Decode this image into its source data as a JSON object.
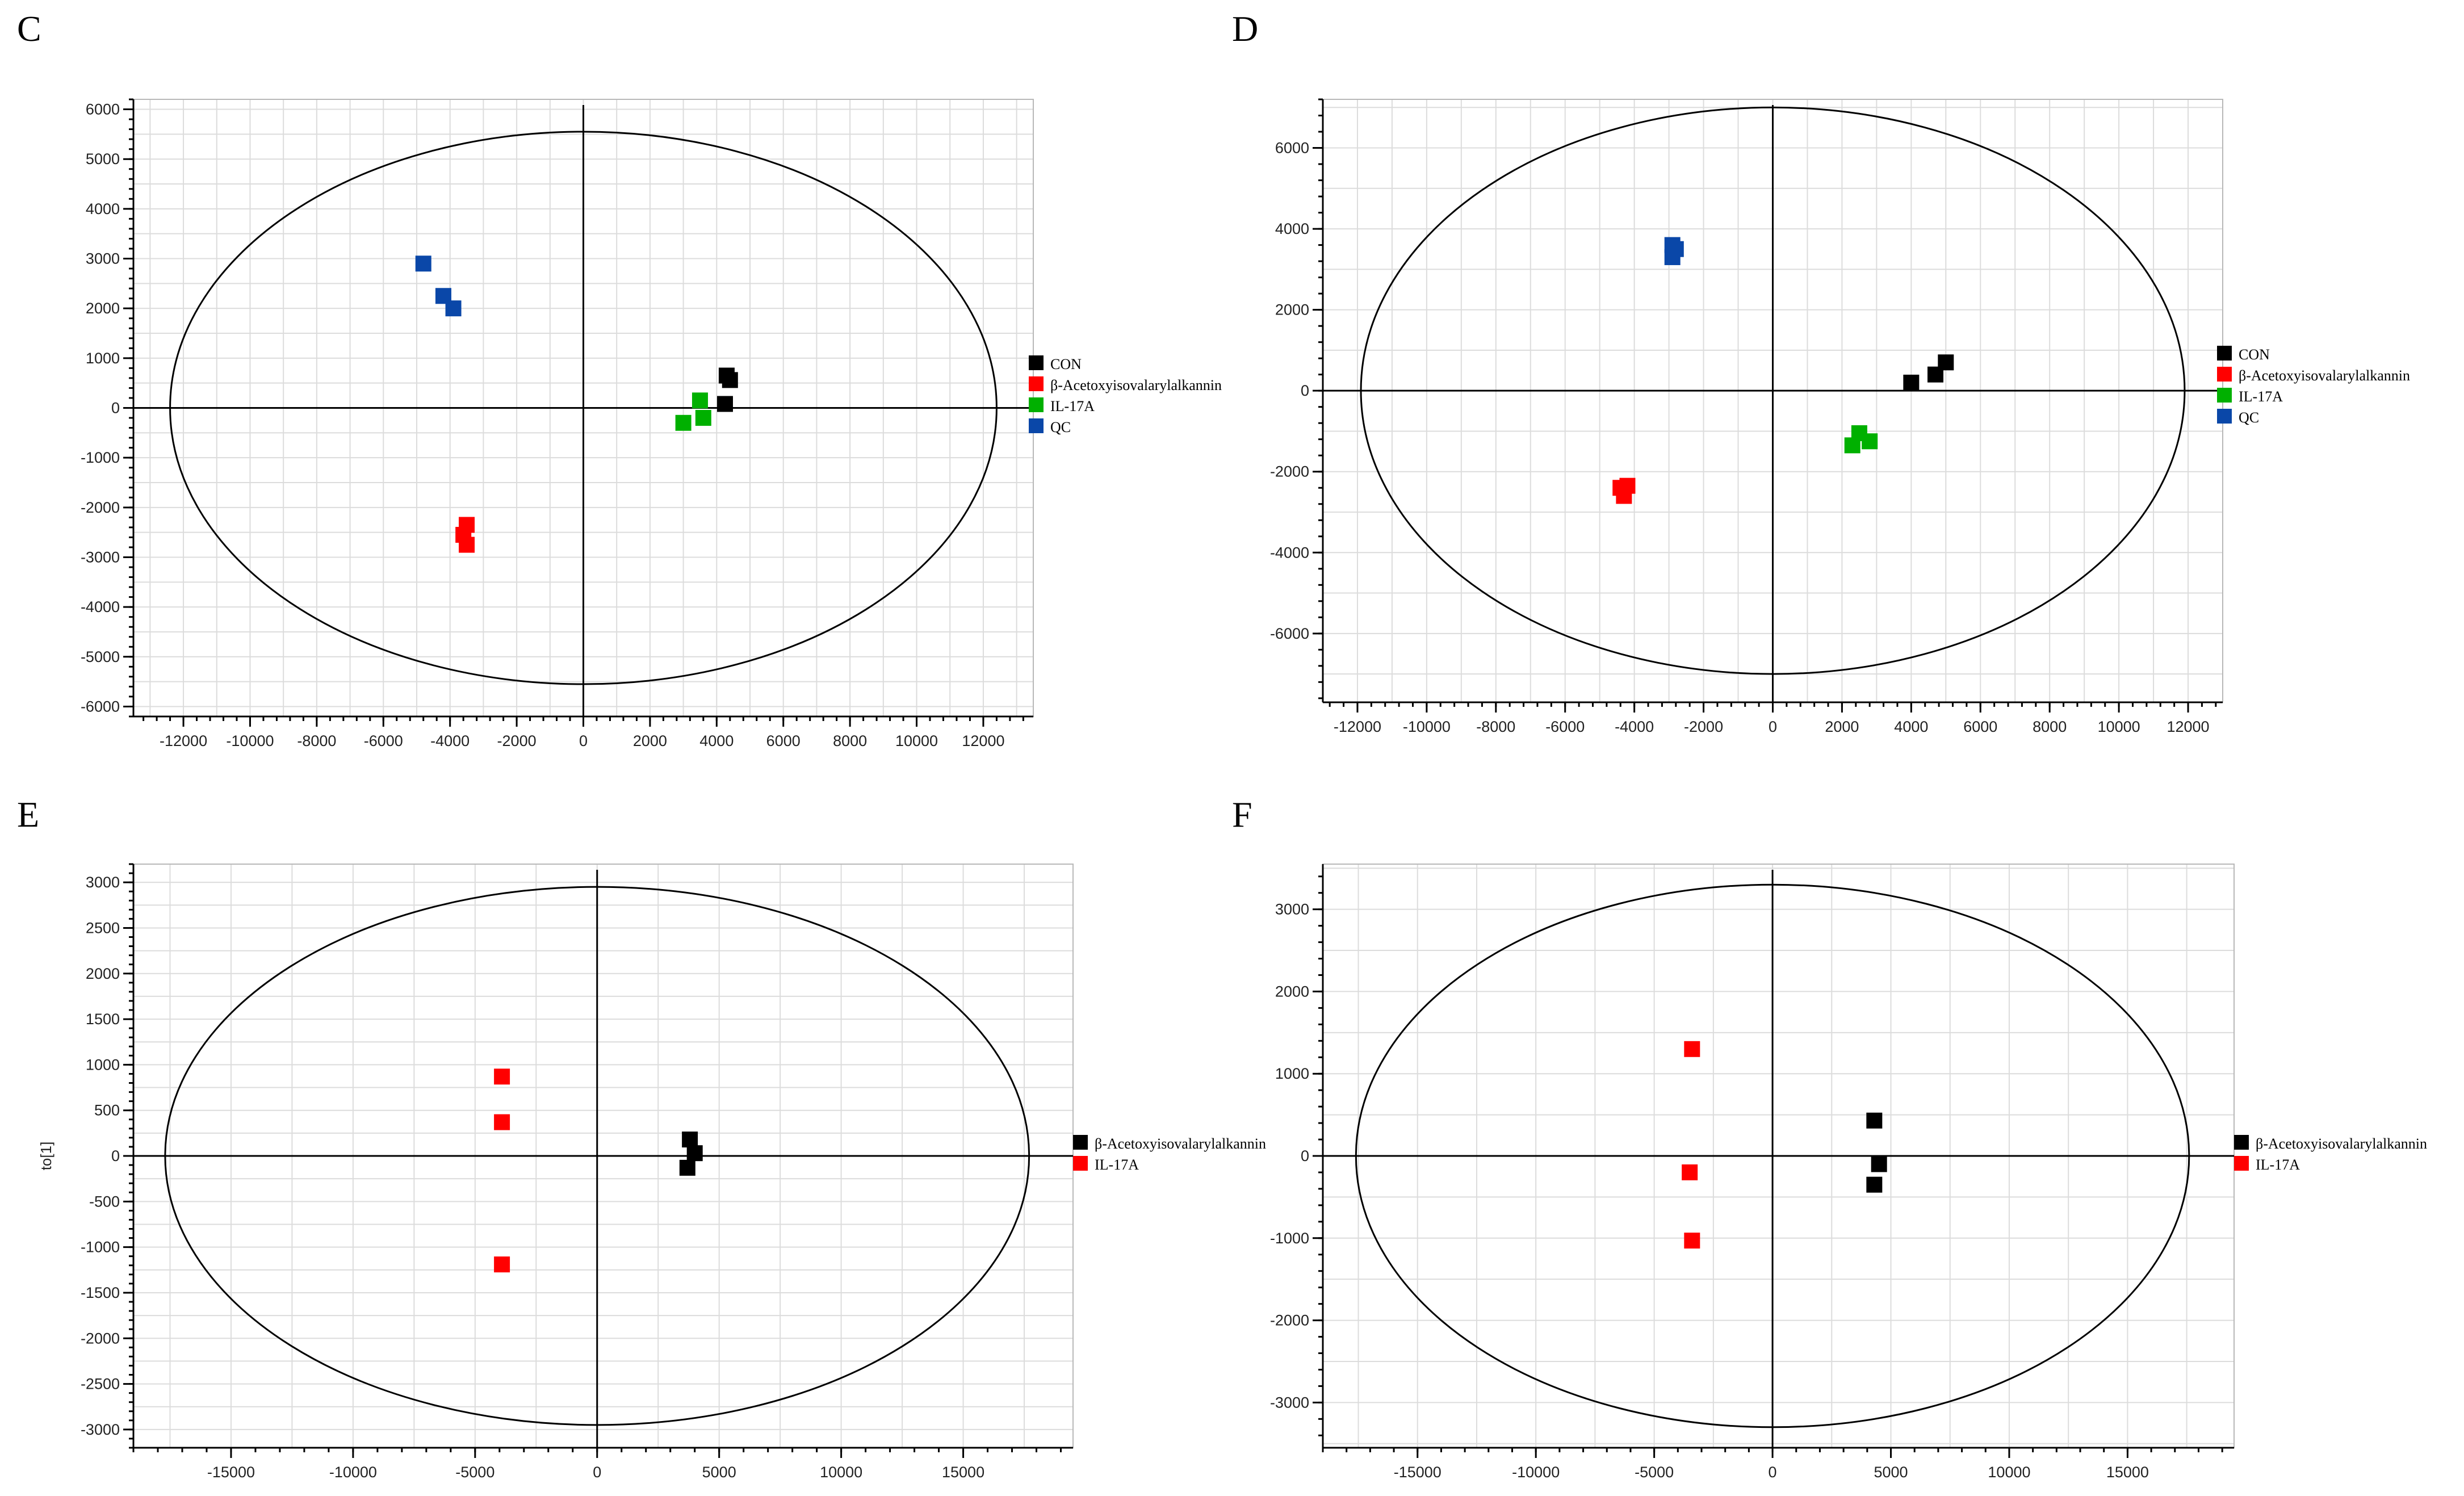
{
  "colors": {
    "CON": "#000000",
    "beta": "#ff0000",
    "IL17A": "#00b000",
    "QC": "#0a47a8"
  },
  "chart_data": [
    {
      "id": "C",
      "type": "scatter",
      "panel_label": "C",
      "xlim": [
        -13500,
        13500
      ],
      "ylim": [
        -6200,
        6200
      ],
      "xticks": [
        -12000,
        -10000,
        -8000,
        -6000,
        -4000,
        -2000,
        0,
        2000,
        4000,
        6000,
        8000,
        10000,
        12000
      ],
      "yticks": [
        -6000,
        -5000,
        -4000,
        -3000,
        -2000,
        -1000,
        0,
        1000,
        2000,
        3000,
        4000,
        5000,
        6000
      ],
      "ellipse": {
        "rx": 12400,
        "ry": 5550
      },
      "ylabel": "",
      "series": [
        {
          "name": "CON",
          "color": "#000000",
          "points": [
            [
              4300,
              650
            ],
            [
              4400,
              560
            ],
            [
              4250,
              80
            ]
          ]
        },
        {
          "name": "β-Acetoxyisovalarylalkannin",
          "color": "#ff0000",
          "points": [
            [
              -3500,
              -2350
            ],
            [
              -3600,
              -2550
            ],
            [
              -3500,
              -2750
            ]
          ]
        },
        {
          "name": "IL-17A",
          "color": "#00b000",
          "points": [
            [
              3500,
              150
            ],
            [
              3600,
              -200
            ],
            [
              3000,
              -300
            ]
          ]
        },
        {
          "name": "QC",
          "color": "#0a47a8",
          "points": [
            [
              -4800,
              2900
            ],
            [
              -4200,
              2250
            ],
            [
              -3900,
              2000
            ]
          ]
        }
      ]
    },
    {
      "id": "D",
      "type": "scatter",
      "panel_label": "D",
      "xlim": [
        -13000,
        13000
      ],
      "ylim": [
        -7700,
        7200
      ],
      "xticks": [
        -12000,
        -10000,
        -8000,
        -6000,
        -4000,
        -2000,
        0,
        2000,
        4000,
        6000,
        8000,
        10000,
        12000
      ],
      "yticks": [
        -6000,
        -4000,
        -2000,
        0,
        2000,
        4000,
        6000
      ],
      "ellipse": {
        "rx": 11900,
        "ry": 7000
      },
      "ylabel": "",
      "series": [
        {
          "name": "CON",
          "color": "#000000",
          "points": [
            [
              4000,
              200
            ],
            [
              4700,
              400
            ],
            [
              5000,
              700
            ]
          ]
        },
        {
          "name": "β-Acetoxyisovalarylalkannin",
          "color": "#ff0000",
          "points": [
            [
              -4400,
              -2400
            ],
            [
              -4200,
              -2350
            ],
            [
              -4300,
              -2600
            ]
          ]
        },
        {
          "name": "IL-17A",
          "color": "#00b000",
          "points": [
            [
              2500,
              -1050
            ],
            [
              2800,
              -1250
            ],
            [
              2300,
              -1350
            ]
          ]
        },
        {
          "name": "QC",
          "color": "#0a47a8",
          "points": [
            [
              -2900,
              3600
            ],
            [
              -2800,
              3500
            ],
            [
              -2900,
              3300
            ]
          ]
        }
      ]
    },
    {
      "id": "E",
      "type": "scatter",
      "panel_label": "E",
      "xlim": [
        -19000,
        19500
      ],
      "ylim": [
        -3200,
        3200
      ],
      "xticks": [
        -15000,
        -10000,
        -5000,
        0,
        5000,
        10000,
        15000
      ],
      "yticks": [
        -3000,
        -2500,
        -2000,
        -1500,
        -1000,
        -500,
        0,
        500,
        1000,
        1500,
        2000,
        2500,
        3000
      ],
      "ellipse": {
        "rx": 17700,
        "ry": 2950
      },
      "ylabel": "to[1]",
      "series": [
        {
          "name": "β-Acetoxyisovalarylalkannin",
          "color": "#000000",
          "points": [
            [
              3800,
              180
            ],
            [
              4000,
              30
            ],
            [
              3700,
              -130
            ]
          ]
        },
        {
          "name": "IL-17A",
          "color": "#ff0000",
          "points": [
            [
              -3900,
              870
            ],
            [
              -3900,
              370
            ],
            [
              -3900,
              -1190
            ]
          ]
        }
      ]
    },
    {
      "id": "F",
      "type": "scatter",
      "panel_label": "F",
      "xlim": [
        -19000,
        19500
      ],
      "ylim": [
        -3550,
        3550
      ],
      "xticks": [
        -15000,
        -10000,
        -5000,
        0,
        5000,
        10000,
        15000
      ],
      "yticks": [
        -3000,
        -2000,
        -1000,
        0,
        1000,
        2000,
        3000
      ],
      "ellipse": {
        "rx": 17600,
        "ry": 3300
      },
      "ylabel": "",
      "series": [
        {
          "name": "β-Acetoxyisovalarylalkannin",
          "color": "#000000",
          "points": [
            [
              4300,
              430
            ],
            [
              4500,
              -100
            ],
            [
              4300,
              -350
            ]
          ]
        },
        {
          "name": "IL-17A",
          "color": "#ff0000",
          "points": [
            [
              -3400,
              1300
            ],
            [
              -3500,
              -200
            ],
            [
              -3400,
              -1030
            ]
          ]
        }
      ]
    }
  ]
}
